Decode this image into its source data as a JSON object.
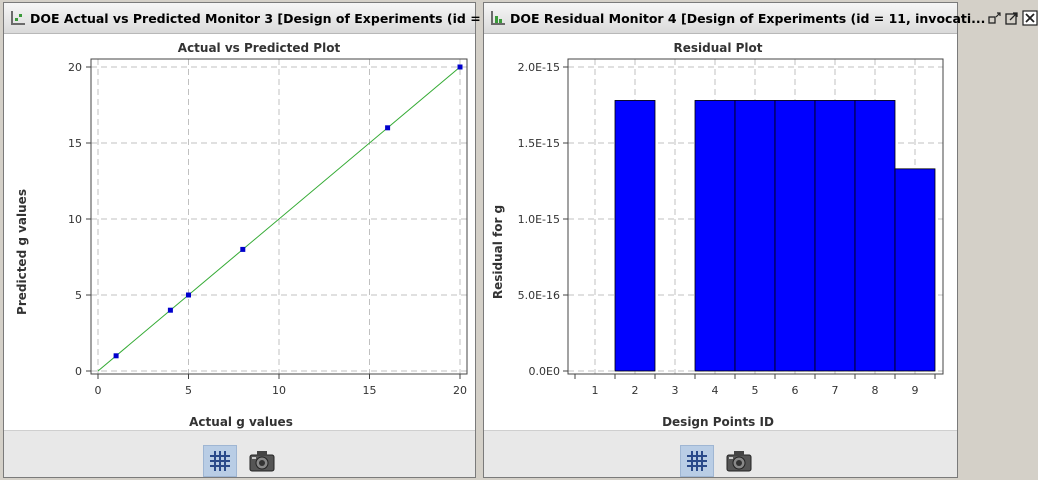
{
  "left_panel": {
    "title": "DOE Actual vs Predicted Monitor 3 [Design of Experiments (id = ...",
    "title_icon": "chart-scatter-icon",
    "buttons": [
      "restore-icon",
      "detach-icon",
      "close-icon"
    ]
  },
  "right_panel": {
    "title": "DOE Residual Monitor 4 [Design of Experiments (id = 11, invocati...",
    "title_icon": "chart-residual-icon",
    "buttons": [
      "restore-icon",
      "detach-icon",
      "close-icon"
    ]
  },
  "footer_buttons": [
    "grid-toggle-icon",
    "camera-icon"
  ],
  "colors": {
    "marker": "#0000cc",
    "fit_line": "#33aa33",
    "bar": "#0000ff",
    "grid": "#c0c0c0"
  },
  "chart_data": [
    {
      "type": "scatter",
      "title": "Actual vs Predicted Plot",
      "xlabel": "Actual g values",
      "ylabel": "Predicted g values",
      "xlim": [
        0,
        20
      ],
      "ylim": [
        0,
        20
      ],
      "xticks": [
        0,
        5,
        10,
        15,
        20
      ],
      "yticks": [
        0,
        5,
        10,
        15,
        20
      ],
      "points": [
        [
          1,
          1
        ],
        [
          4,
          4
        ],
        [
          5,
          5
        ],
        [
          8,
          8
        ],
        [
          16,
          16
        ],
        [
          20,
          20
        ]
      ],
      "fit_line": [
        [
          0,
          0
        ],
        [
          20,
          20
        ]
      ],
      "grid": true
    },
    {
      "type": "bar",
      "title": "Residual Plot",
      "xlabel": "Design Points ID",
      "ylabel": "Residual for g",
      "categories": [
        "1",
        "2",
        "3",
        "4",
        "5",
        "6",
        "7",
        "8",
        "9"
      ],
      "values": [
        0,
        1.78e-15,
        0,
        1.78e-15,
        1.78e-15,
        1.78e-15,
        1.78e-15,
        1.78e-15,
        1.33e-15
      ],
      "ylim": [
        0,
        2e-15
      ],
      "yticks": [
        0,
        5e-16,
        1e-15,
        1.5e-15,
        2e-15
      ],
      "ytick_labels": [
        "0.0E0",
        "5.0E-16",
        "1.0E-15",
        "1.5E-15",
        "2.0E-15"
      ],
      "grid": true
    }
  ]
}
